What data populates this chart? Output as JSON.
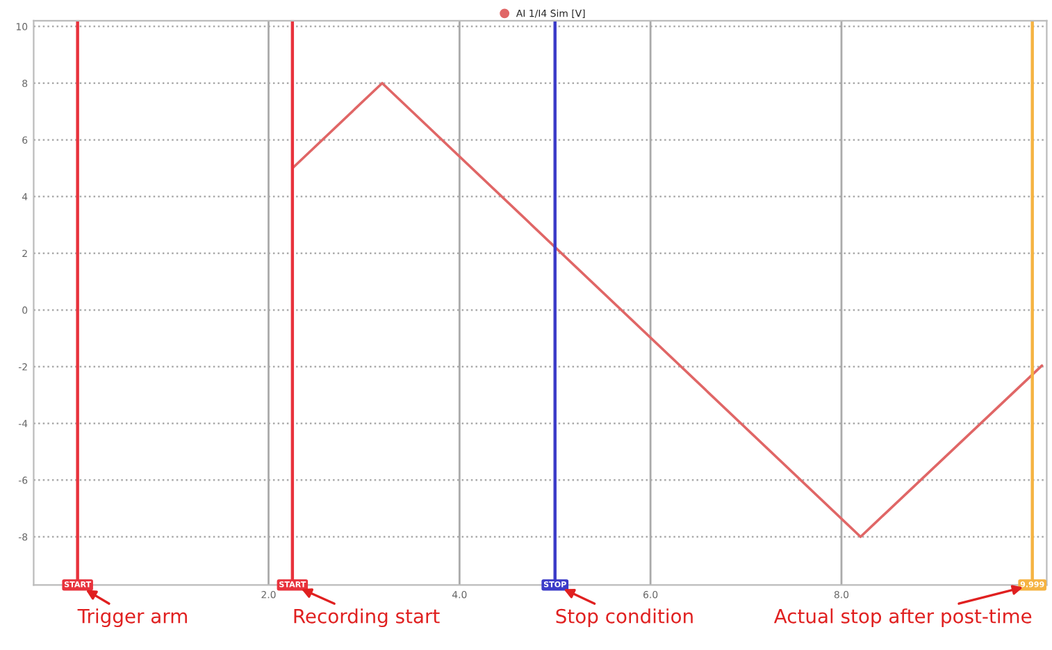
{
  "chart_data": {
    "type": "line",
    "series": [
      {
        "name": "AI 1/I4 Sim [V]",
        "color": "#e06666",
        "x": [
          2.25,
          3.19,
          8.2,
          10.1
        ],
        "values": [
          5.0,
          8.0,
          -8.0,
          -1.96
        ]
      }
    ],
    "xlim": [
      -0.46,
      10.15
    ],
    "ylim": [
      -9.7,
      10.2
    ],
    "xticks": [
      {
        "value": 0,
        "label": null
      },
      {
        "value": 2,
        "label": "2.0"
      },
      {
        "value": 4,
        "label": "4.0"
      },
      {
        "value": 6,
        "label": "6.0"
      },
      {
        "value": 8,
        "label": "8.0"
      },
      {
        "value": 10,
        "label": null
      }
    ],
    "yticks": [
      -8,
      -6,
      -4,
      -2,
      0,
      2,
      4,
      6,
      8,
      10
    ],
    "ref_lines": [
      {
        "axis": "x",
        "value": 0,
        "label": "START",
        "color": "#e8323c"
      },
      {
        "axis": "x",
        "value": 2.25,
        "label": "START",
        "color": "#e8323c"
      },
      {
        "axis": "x",
        "value": 5.0,
        "label": "STOP",
        "color": "#3b3bc8"
      },
      {
        "axis": "x",
        "value": 9.999,
        "label": "9.999",
        "color": "#f5b342"
      }
    ],
    "annotations": [
      {
        "text": "Trigger arm",
        "x": 0,
        "y": -9.7
      },
      {
        "text": "Recording start",
        "x": 2.25,
        "y": -9.7
      },
      {
        "text": "Stop condition",
        "x": 5.0,
        "y": -9.7
      },
      {
        "text": "Actual stop after post-time",
        "x": 9.999,
        "y": -9.7
      }
    ],
    "grid": true,
    "legend": "top",
    "marker": "none",
    "line_style": "solid"
  }
}
